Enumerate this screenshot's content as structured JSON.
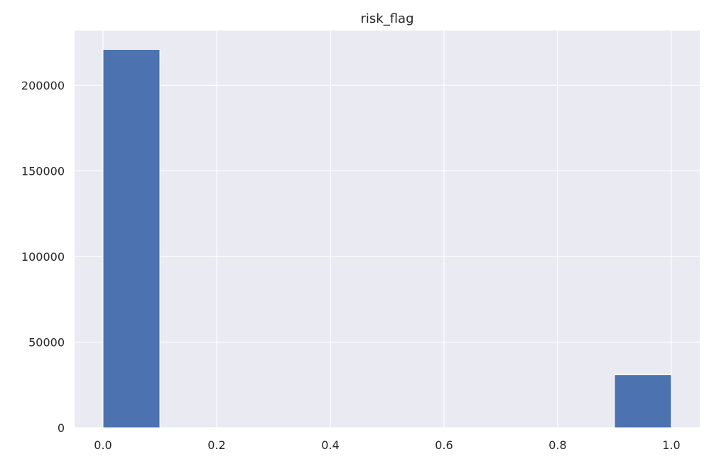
{
  "chart_data": {
    "type": "bar",
    "title": "risk_flag",
    "xlabel": "",
    "ylabel": "",
    "xlim": [
      -0.05,
      1.05
    ],
    "ylim": [
      0,
      232000
    ],
    "x_ticks": [
      0.0,
      0.2,
      0.4,
      0.6,
      0.8,
      1.0
    ],
    "x_tick_labels": [
      "0.0",
      "0.2",
      "0.4",
      "0.6",
      "0.8",
      "1.0"
    ],
    "y_ticks": [
      0,
      50000,
      100000,
      150000,
      200000
    ],
    "y_tick_labels": [
      "0",
      "50000",
      "100000",
      "150000",
      "200000"
    ],
    "bin_edges": [
      0.0,
      0.1,
      0.2,
      0.3,
      0.4,
      0.5,
      0.6,
      0.7,
      0.8,
      0.9,
      1.0
    ],
    "values": [
      221000,
      0,
      0,
      0,
      0,
      0,
      0,
      0,
      0,
      30900
    ],
    "grid": true,
    "bar_color": "#4c72b0",
    "background_color": "#eaeaf2",
    "grid_color": "#ffffff"
  }
}
